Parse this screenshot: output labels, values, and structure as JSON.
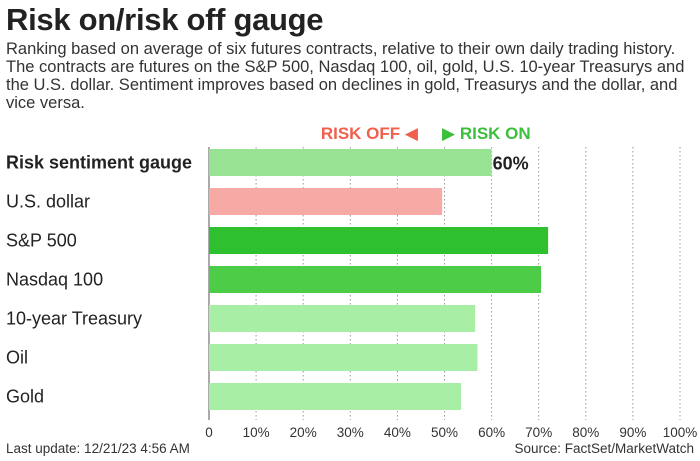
{
  "header": {
    "title": "Risk on/risk off gauge",
    "subtitle": "Ranking based on average of six futures contracts, relative to their own daily trading history. The contracts are futures on the S&P 500, Nasdaq 100, oil, gold, U.S. 10-year Treasurys and the U.S. dollar. Sentiment improves based on declines in gold, Treasurys and the dollar, and vice versa."
  },
  "legend": {
    "risk_off": "RISK OFF",
    "risk_on": "RISK ON",
    "risk_off_color": "#f0604d",
    "risk_on_color": "#3cbf3c"
  },
  "footer": {
    "last_update": "Last update: 12/21/23 4:56 AM",
    "source": "Source: FactSet/MarketWatch"
  },
  "chart_data": {
    "type": "bar",
    "orientation": "horizontal",
    "categories": [
      "Risk sentiment gauge",
      "U.S. dollar",
      "S&P 500",
      "Nasdaq 100",
      "10-year Treasury",
      "Oil",
      "Gold"
    ],
    "values": [
      60,
      49.5,
      72,
      70.5,
      56.5,
      57,
      53.5
    ],
    "colors": [
      "#98e393",
      "#f7a9a6",
      "#2ec02e",
      "#4ccc47",
      "#a8eea4",
      "#a8eea4",
      "#a8eea4"
    ],
    "data_labels": [
      "60%",
      "",
      "",
      "",
      "",
      "",
      ""
    ],
    "xlim": [
      0,
      100
    ],
    "xticks": [
      "0",
      "10%",
      "20%",
      "30%",
      "40%",
      "50%",
      "60%",
      "70%",
      "80%",
      "90%",
      "100%"
    ],
    "grid": "vertical dotted",
    "bold_categories": [
      "Risk sentiment gauge"
    ]
  }
}
